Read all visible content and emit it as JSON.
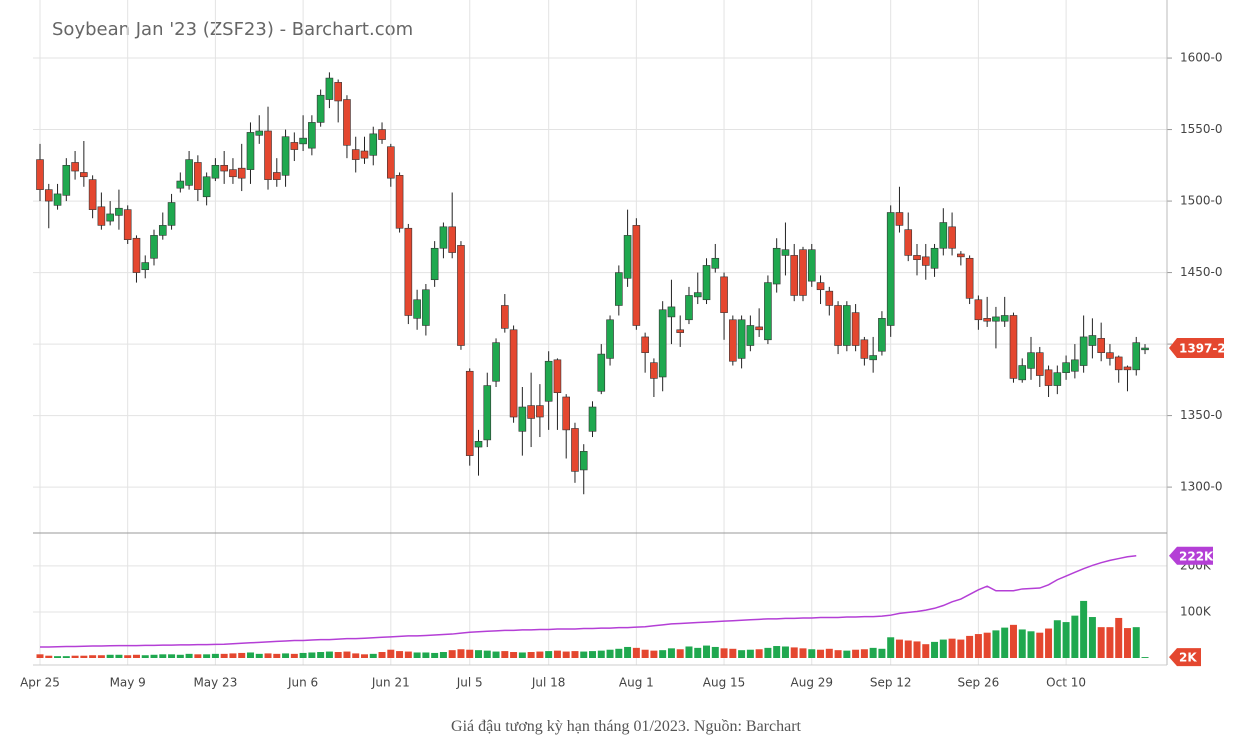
{
  "chart_data": [
    {
      "type": "candlestick",
      "title": "Soybean Jan '23 (ZSF23) - Barchart.com",
      "categories": [
        "Apr 25",
        null,
        null,
        null,
        null,
        null,
        null,
        null,
        null,
        null,
        "May 9",
        null,
        null,
        null,
        null,
        null,
        null,
        null,
        null,
        null,
        "May 23",
        null,
        null,
        null,
        null,
        null,
        null,
        null,
        null,
        null,
        "Jun 6",
        null,
        null,
        null,
        null,
        null,
        null,
        null,
        null,
        null,
        "Jun 21",
        null,
        null,
        null,
        null,
        null,
        null,
        null,
        null,
        "Jul 5",
        null,
        null,
        null,
        null,
        null,
        null,
        null,
        null,
        "Jul 18",
        null,
        null,
        null,
        null,
        null,
        null,
        null,
        null,
        null,
        "Aug 1",
        null,
        null,
        null,
        null,
        null,
        null,
        null,
        null,
        null,
        "Aug 15",
        null,
        null,
        null,
        null,
        null,
        null,
        null,
        null,
        null,
        "Aug 29",
        null,
        null,
        null,
        null,
        null,
        null,
        null,
        null,
        "Sep 12",
        null,
        null,
        null,
        null,
        null,
        null,
        null,
        null,
        null,
        "Sep 26",
        null,
        null,
        null,
        null,
        null,
        null,
        null,
        null,
        null,
        "Oct 10",
        null,
        null,
        null,
        null,
        null,
        null,
        null,
        null,
        null
      ],
      "open": [
        1529,
        1508,
        1497,
        1504,
        1527,
        1520,
        1515,
        1496,
        1486,
        1490,
        1494,
        1474,
        1452,
        1460,
        1476,
        1483,
        1509,
        1511,
        1527,
        1503,
        1516,
        1525,
        1522,
        1523,
        1522,
        1546,
        1549,
        1520,
        1518,
        1541,
        1540,
        1537,
        1555,
        1571,
        1583,
        1571,
        1536,
        1535,
        1532,
        1550,
        1538,
        1518,
        1481,
        1418,
        1413,
        1445,
        1467,
        1482,
        1469,
        1381,
        1328,
        1333,
        1374,
        1427,
        1410,
        1339,
        1357,
        1357,
        1360,
        1389,
        1363,
        1341,
        1312,
        1339,
        1367,
        1390,
        1427,
        1446,
        1483,
        1405,
        1387,
        1377,
        1419,
        1410,
        1417,
        1433,
        1431,
        1453,
        1447,
        1417,
        1390,
        1399,
        1412,
        1403,
        1442,
        1462,
        1462,
        1466,
        1444,
        1443,
        1437,
        1427,
        1399,
        1422,
        1403,
        1389,
        1395,
        1413,
        1492,
        1480,
        1462,
        1461,
        1453,
        1467,
        1482,
        1463,
        1460,
        1431,
        1418,
        1416,
        1416,
        1420,
        1375,
        1383,
        1394,
        1382,
        1371,
        1380,
        1381,
        1385,
        1399,
        1404,
        1394,
        1391,
        1384,
        1382,
        1396
      ],
      "high": [
        1540,
        1512,
        1512,
        1530,
        1535,
        1542,
        1518,
        1506,
        1500,
        1508,
        1497,
        1476,
        1462,
        1480,
        1492,
        1505,
        1520,
        1535,
        1532,
        1520,
        1530,
        1535,
        1530,
        1540,
        1555,
        1560,
        1566,
        1530,
        1550,
        1548,
        1560,
        1560,
        1578,
        1590,
        1585,
        1574,
        1545,
        1545,
        1552,
        1555,
        1540,
        1520,
        1484,
        1438,
        1442,
        1472,
        1485,
        1506,
        1472,
        1383,
        1340,
        1380,
        1404,
        1435,
        1413,
        1370,
        1380,
        1372,
        1395,
        1390,
        1365,
        1345,
        1330,
        1360,
        1400,
        1420,
        1455,
        1494,
        1488,
        1408,
        1390,
        1430,
        1445,
        1420,
        1440,
        1450,
        1460,
        1470,
        1450,
        1420,
        1420,
        1420,
        1425,
        1448,
        1474,
        1485,
        1470,
        1468,
        1470,
        1448,
        1440,
        1430,
        1430,
        1428,
        1405,
        1405,
        1423,
        1497,
        1510,
        1492,
        1470,
        1470,
        1470,
        1495,
        1492,
        1465,
        1462,
        1434,
        1433,
        1426,
        1433,
        1422,
        1390,
        1405,
        1398,
        1385,
        1385,
        1392,
        1400,
        1420,
        1418,
        1415,
        1400,
        1392,
        1385,
        1405,
        1400
      ],
      "low": [
        1500,
        1481,
        1494,
        1500,
        1515,
        1510,
        1488,
        1480,
        1483,
        1480,
        1470,
        1443,
        1446,
        1455,
        1473,
        1480,
        1506,
        1508,
        1500,
        1497,
        1514,
        1512,
        1512,
        1507,
        1512,
        1540,
        1508,
        1510,
        1510,
        1528,
        1535,
        1532,
        1552,
        1565,
        1555,
        1530,
        1520,
        1526,
        1525,
        1540,
        1510,
        1478,
        1414,
        1410,
        1406,
        1440,
        1460,
        1460,
        1396,
        1315,
        1308,
        1328,
        1370,
        1408,
        1345,
        1322,
        1328,
        1335,
        1340,
        1340,
        1320,
        1303,
        1295,
        1335,
        1365,
        1385,
        1420,
        1440,
        1410,
        1380,
        1363,
        1367,
        1400,
        1398,
        1414,
        1428,
        1428,
        1450,
        1403,
        1385,
        1383,
        1395,
        1405,
        1400,
        1436,
        1448,
        1430,
        1430,
        1440,
        1428,
        1420,
        1393,
        1395,
        1395,
        1385,
        1380,
        1392,
        1405,
        1478,
        1458,
        1448,
        1445,
        1447,
        1462,
        1462,
        1455,
        1428,
        1410,
        1412,
        1397,
        1412,
        1373,
        1373,
        1375,
        1370,
        1363,
        1365,
        1375,
        1376,
        1380,
        1390,
        1388,
        1385,
        1373,
        1367,
        1378,
        1393
      ],
      "close": [
        1508,
        1500,
        1505,
        1525,
        1521,
        1517,
        1494,
        1483,
        1491,
        1495,
        1473,
        1450,
        1457,
        1476,
        1483,
        1499,
        1514,
        1529,
        1508,
        1517,
        1525,
        1521,
        1517,
        1516,
        1548,
        1549,
        1515,
        1515,
        1545,
        1536,
        1544,
        1555,
        1574,
        1586,
        1570,
        1539,
        1529,
        1530,
        1547,
        1543,
        1516,
        1481,
        1420,
        1431,
        1438,
        1467,
        1482,
        1464,
        1399,
        1322,
        1332,
        1371,
        1401,
        1411,
        1349,
        1356,
        1348,
        1349,
        1388,
        1366,
        1340,
        1311,
        1325,
        1356,
        1393,
        1417,
        1450,
        1476,
        1413,
        1394,
        1376,
        1424,
        1426,
        1408,
        1434,
        1436,
        1455,
        1460,
        1422,
        1388,
        1417,
        1413,
        1410,
        1443,
        1467,
        1466,
        1434,
        1434,
        1466,
        1438,
        1427,
        1399,
        1427,
        1399,
        1390,
        1392,
        1418,
        1492,
        1483,
        1462,
        1459,
        1455,
        1467,
        1485,
        1467,
        1461,
        1432,
        1417,
        1416,
        1419,
        1420,
        1376,
        1385,
        1394,
        1378,
        1371,
        1380,
        1387,
        1389,
        1405,
        1406,
        1394,
        1390,
        1382,
        1382,
        1401,
        1397.25
      ],
      "last_label": "1397-2",
      "up_color": "#1fa84f",
      "down_color": "#e4472f",
      "ylim": [
        1270,
        1635
      ],
      "yticks": [
        {
          "value": 1300,
          "label": "1300-0"
        },
        {
          "value": 1350,
          "label": "1350-0"
        },
        {
          "value": 1400,
          "label": "1400-0"
        },
        {
          "value": 1450,
          "label": "1450-0"
        },
        {
          "value": 1500,
          "label": "1500-0"
        },
        {
          "value": 1550,
          "label": "1550-0"
        },
        {
          "value": 1600,
          "label": "1600-0"
        }
      ],
      "grid": true
    },
    {
      "type": "volume",
      "values": [
        8000,
        5000,
        4000,
        4000,
        5000,
        5000,
        6000,
        6000,
        7000,
        7000,
        6000,
        7000,
        6000,
        7000,
        8000,
        8000,
        7000,
        9000,
        8000,
        8000,
        9000,
        9000,
        10000,
        11000,
        12000,
        9000,
        10000,
        9000,
        10000,
        9000,
        11000,
        12000,
        13000,
        14000,
        13000,
        14000,
        10000,
        8000,
        9000,
        13000,
        18000,
        15000,
        14000,
        12000,
        12000,
        11000,
        13000,
        17000,
        19000,
        18000,
        17000,
        16000,
        14000,
        15000,
        13000,
        12000,
        13000,
        14000,
        15000,
        16000,
        14000,
        15000,
        14000,
        15000,
        16000,
        18000,
        20000,
        24000,
        22000,
        18000,
        16000,
        17000,
        21000,
        19000,
        25000,
        22000,
        27000,
        24000,
        21000,
        20000,
        17000,
        18000,
        19000,
        22000,
        26000,
        25000,
        23000,
        21000,
        19000,
        18000,
        20000,
        17000,
        16000,
        18000,
        19000,
        22000,
        20000,
        45000,
        40000,
        38000,
        36000,
        30000,
        35000,
        40000,
        42000,
        40000,
        48000,
        52000,
        55000,
        60000,
        66000,
        72000,
        62000,
        58000,
        55000,
        64000,
        82000,
        78000,
        92000,
        124000,
        89000,
        67000,
        67000,
        87000,
        65000,
        67000,
        2000
      ],
      "value_label": "2K",
      "line": [
        24000,
        24000,
        24500,
        25000,
        25000,
        25500,
        26000,
        26000,
        26500,
        27000,
        27000,
        27000,
        27500,
        27500,
        28000,
        28000,
        28500,
        28500,
        29000,
        29000,
        29500,
        30000,
        31000,
        32000,
        33000,
        34000,
        35000,
        36000,
        37000,
        38000,
        38000,
        39000,
        40000,
        40000,
        41000,
        42000,
        42000,
        43000,
        44000,
        45000,
        46000,
        47000,
        48000,
        48000,
        49000,
        50000,
        51000,
        52000,
        54000,
        56000,
        57000,
        58000,
        59000,
        60000,
        60000,
        61000,
        61000,
        62000,
        62000,
        63000,
        63000,
        63000,
        64000,
        64000,
        65000,
        65000,
        66000,
        66000,
        67000,
        68000,
        70000,
        72000,
        74000,
        75000,
        76000,
        77000,
        78000,
        79000,
        80000,
        81000,
        82000,
        83000,
        84000,
        85000,
        85000,
        86000,
        86000,
        87000,
        87000,
        88000,
        88000,
        88000,
        89000,
        89000,
        90000,
        90000,
        91000,
        93000,
        97000,
        99000,
        101000,
        104000,
        108000,
        114000,
        122000,
        128000,
        138000,
        148000,
        156000,
        146000,
        146000,
        146000,
        150000,
        151000,
        152000,
        159000,
        170000,
        178000,
        186000,
        194000,
        201000,
        207000,
        212000,
        216000,
        220000,
        222000,
        null
      ],
      "line_label": "222K",
      "line_color": "#b43fd6",
      "ylim": [
        0,
        265000
      ],
      "yticks": [
        {
          "value": 100000,
          "label": "100K"
        },
        {
          "value": 200000,
          "label": "200K"
        }
      ]
    }
  ],
  "caption": "Giá đậu tương kỳ hạn tháng 01/2023. Nguồn: Barchart"
}
